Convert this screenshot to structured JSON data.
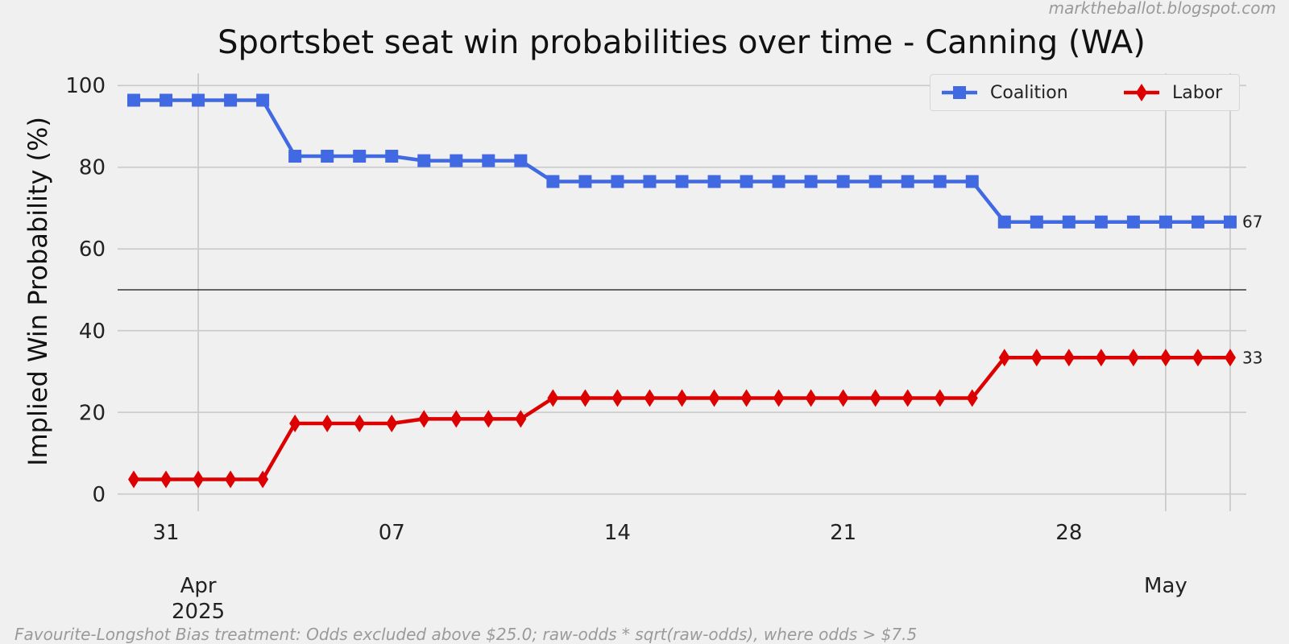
{
  "watermark": "marktheballot.blogspot.com",
  "footnote": "Favourite-Longshot Bias treatment: Odds excluded above $25.0; raw-odds * sqrt(raw-odds), where odds > $7.5",
  "chart_data": {
    "type": "line",
    "title": "Sportsbet seat win probabilities over time - Canning (WA)",
    "xlabel": "",
    "ylabel": "Implied Win Probability (%)",
    "ylim": [
      -3,
      103
    ],
    "yticks": [
      0,
      20,
      40,
      60,
      80,
      100
    ],
    "reference_line_y": 50,
    "x": [
      "2025-03-30",
      "2025-03-31",
      "2025-04-01",
      "2025-04-02",
      "2025-04-03",
      "2025-04-04",
      "2025-04-05",
      "2025-04-06",
      "2025-04-07",
      "2025-04-08",
      "2025-04-09",
      "2025-04-10",
      "2025-04-11",
      "2025-04-12",
      "2025-04-13",
      "2025-04-14",
      "2025-04-15",
      "2025-04-16",
      "2025-04-17",
      "2025-04-18",
      "2025-04-19",
      "2025-04-20",
      "2025-04-21",
      "2025-04-22",
      "2025-04-23",
      "2025-04-24",
      "2025-04-25",
      "2025-04-26",
      "2025-04-27",
      "2025-04-28",
      "2025-04-29",
      "2025-04-30",
      "2025-05-01",
      "2025-05-02",
      "2025-05-03"
    ],
    "xlim": [
      "2025-03-29T12:00",
      "2025-05-03T12:00"
    ],
    "x_major_ticks": [
      {
        "date": "2025-03-31",
        "label": "31"
      },
      {
        "date": "2025-04-07",
        "label": "07"
      },
      {
        "date": "2025-04-14",
        "label": "14"
      },
      {
        "date": "2025-04-21",
        "label": "21"
      },
      {
        "date": "2025-04-28",
        "label": "28"
      }
    ],
    "x_month_ticks": [
      {
        "date": "2025-04-01",
        "label": "Apr",
        "year": "2025"
      },
      {
        "date": "2025-05-01",
        "label": "May",
        "year": ""
      }
    ],
    "grid": true,
    "legend_position": "top-right",
    "series": [
      {
        "name": "Coalition",
        "color": "#4169e1",
        "marker": "square",
        "end_label": "67",
        "values": [
          96.4,
          96.4,
          96.4,
          96.4,
          96.4,
          82.7,
          82.7,
          82.7,
          82.7,
          81.6,
          81.6,
          81.6,
          81.6,
          76.5,
          76.5,
          76.5,
          76.5,
          76.5,
          76.5,
          76.5,
          76.5,
          76.5,
          76.5,
          76.5,
          76.5,
          76.5,
          76.5,
          66.6,
          66.6,
          66.6,
          66.6,
          66.6,
          66.6,
          66.6,
          66.6
        ]
      },
      {
        "name": "Labor",
        "color": "#dd0000",
        "marker": "diamond",
        "end_label": "33",
        "values": [
          3.6,
          3.6,
          3.6,
          3.6,
          3.6,
          17.3,
          17.3,
          17.3,
          17.3,
          18.4,
          18.4,
          18.4,
          18.4,
          23.5,
          23.5,
          23.5,
          23.5,
          23.5,
          23.5,
          23.5,
          23.5,
          23.5,
          23.5,
          23.5,
          23.5,
          23.5,
          23.5,
          33.4,
          33.4,
          33.4,
          33.4,
          33.4,
          33.4,
          33.4,
          33.4
        ]
      }
    ]
  }
}
